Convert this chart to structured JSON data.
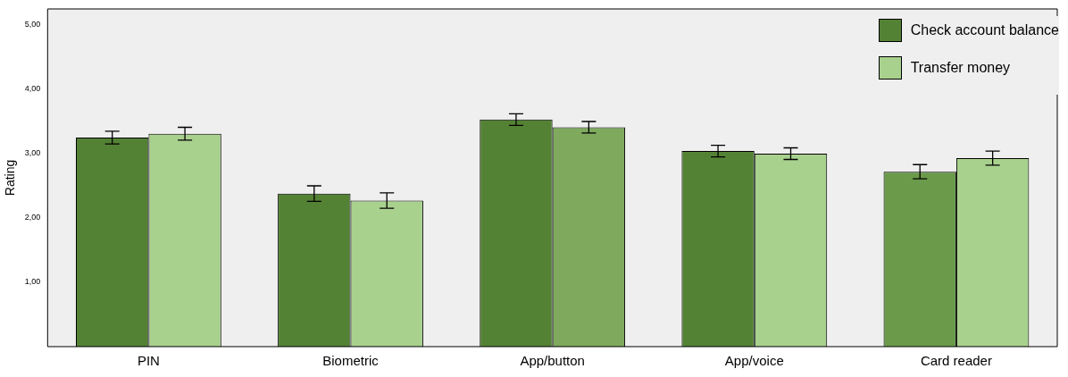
{
  "chart_data": {
    "type": "bar",
    "ylabel": "Rating",
    "categories": [
      "PIN",
      "Biometric",
      "App/button",
      "App/voice",
      "Card reader"
    ],
    "series": [
      {
        "name": "Check account balance",
        "color": "#548235",
        "colors": [
          "#548235",
          "#548235",
          "#548235",
          "#548235",
          "#6a9a4a"
        ],
        "values": [
          3.25,
          2.38,
          3.53,
          3.04,
          2.72
        ],
        "errors": [
          0.1,
          0.12,
          0.09,
          0.09,
          0.11
        ]
      },
      {
        "name": "Transfer money",
        "color": "#a9d18e",
        "colors": [
          "#a9d18e",
          "#a9d18e",
          "#7faa5e",
          "#a9d18e",
          "#a9d18e"
        ],
        "values": [
          3.31,
          2.27,
          3.41,
          3.0,
          2.93
        ],
        "errors": [
          0.1,
          0.12,
          0.09,
          0.09,
          0.11
        ]
      }
    ],
    "ylim": [
      0,
      5.25
    ],
    "yticks": [
      {
        "value": 1,
        "label": "1,00"
      },
      {
        "value": 2,
        "label": "2,00"
      },
      {
        "value": 3,
        "label": "3,00"
      },
      {
        "value": 4,
        "label": "4,00"
      },
      {
        "value": 5,
        "label": "5,00"
      }
    ],
    "grid": false,
    "legend": "top right"
  }
}
